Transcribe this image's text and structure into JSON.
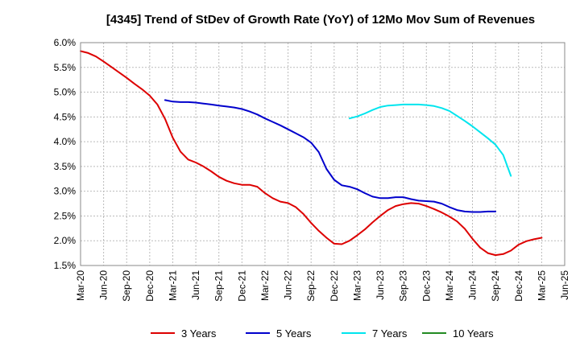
{
  "chart_data": {
    "type": "line",
    "title": "[4345]  Trend of StDev of Growth Rate (YoY) of 12Mo Mov Sum of Revenues",
    "xlabel": "",
    "ylabel": "",
    "ylim": [
      1.5,
      6.0
    ],
    "y_ticks": [
      "1.5%",
      "2.0%",
      "2.5%",
      "3.0%",
      "3.5%",
      "4.0%",
      "4.5%",
      "5.0%",
      "5.5%",
      "6.0%"
    ],
    "x_ticks": [
      "Mar-20",
      "Jun-20",
      "Sep-20",
      "Dec-20",
      "Mar-21",
      "Jun-21",
      "Sep-21",
      "Dec-21",
      "Mar-22",
      "Jun-22",
      "Sep-22",
      "Dec-22",
      "Mar-23",
      "Jun-23",
      "Sep-23",
      "Dec-23",
      "Mar-24",
      "Jun-24",
      "Sep-24",
      "Dec-24",
      "Mar-25",
      "Jun-25"
    ],
    "grid": true,
    "legend_position": "bottom",
    "series": [
      {
        "name": "3 Years",
        "color": "#dd0000",
        "start_index": 0,
        "values": [
          5.83,
          5.79,
          5.72,
          5.62,
          5.51,
          5.4,
          5.29,
          5.17,
          5.06,
          4.93,
          4.75,
          4.46,
          4.08,
          3.8,
          3.64,
          3.58,
          3.5,
          3.4,
          3.29,
          3.21,
          3.16,
          3.13,
          3.13,
          3.09,
          2.96,
          2.86,
          2.79,
          2.76,
          2.68,
          2.54,
          2.36,
          2.2,
          2.06,
          1.94,
          1.93,
          2.0,
          2.11,
          2.23,
          2.37,
          2.5,
          2.62,
          2.7,
          2.74,
          2.76,
          2.75,
          2.7,
          2.64,
          2.57,
          2.49,
          2.39,
          2.24,
          2.04,
          1.86,
          1.75,
          1.71,
          1.73,
          1.8,
          1.92,
          1.99,
          2.03,
          2.06
        ]
      },
      {
        "name": "5 Years",
        "color": "#0000cc",
        "start_index": 11,
        "values": [
          4.84,
          4.81,
          4.8,
          4.8,
          4.79,
          4.77,
          4.75,
          4.73,
          4.71,
          4.69,
          4.66,
          4.61,
          4.55,
          4.47,
          4.4,
          4.33,
          4.25,
          4.17,
          4.09,
          3.98,
          3.79,
          3.45,
          3.23,
          3.12,
          3.09,
          3.04,
          2.96,
          2.89,
          2.86,
          2.86,
          2.88,
          2.88,
          2.84,
          2.81,
          2.8,
          2.79,
          2.75,
          2.68,
          2.62,
          2.59,
          2.58,
          2.58,
          2.59,
          2.59
        ]
      },
      {
        "name": "7 Years",
        "color": "#00e5ee",
        "start_index": 35,
        "values": [
          4.47,
          4.51,
          4.57,
          4.64,
          4.7,
          4.73,
          4.74,
          4.75,
          4.75,
          4.75,
          4.74,
          4.72,
          4.68,
          4.62,
          4.52,
          4.42,
          4.31,
          4.19,
          4.07,
          3.94,
          3.73,
          3.31
        ]
      },
      {
        "name": "10 Years",
        "color": "#228b22",
        "start_index": 0,
        "values": []
      }
    ]
  }
}
